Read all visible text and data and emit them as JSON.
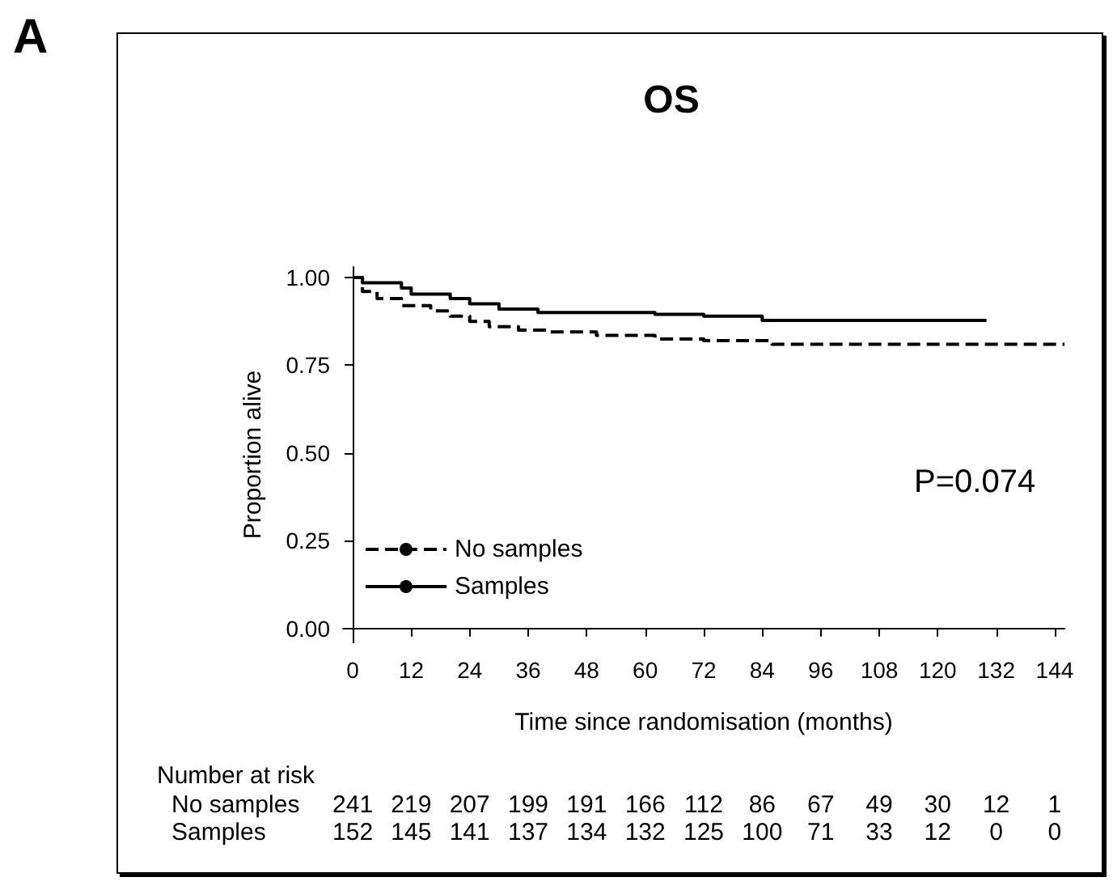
{
  "chart_data": {
    "type": "step",
    "title": "OS",
    "xlabel": "Time since randomisation (months)",
    "ylabel": "Proportion alive",
    "annotations": [
      "A",
      "P=0.074",
      "Number at risk",
      "No samples",
      "241 219 207 199 191 166 112 86 67 49 30 12 1",
      "Samples",
      "152 145 141 137 134 132 125 100 71 33 12 0 0"
    ],
    "series": [
      {
        "name": "No samples",
        "color": "#000000",
        "line_style": "dashed",
        "x": [
          0,
          2,
          5,
          10,
          16,
          20,
          24,
          28,
          34,
          40,
          50,
          62,
          72,
          86,
          146
        ],
        "values": [
          1,
          0.96,
          0.94,
          0.92,
          0.905,
          0.89,
          0.875,
          0.86,
          0.85,
          0.845,
          0.835,
          0.825,
          0.82,
          0.81,
          0.81
        ]
      },
      {
        "name": "Samples",
        "color": "#000000",
        "line_style": "solid",
        "x": [
          0,
          2,
          10,
          12,
          20,
          24,
          30,
          38,
          62,
          72,
          84,
          130
        ],
        "values": [
          1,
          0.985,
          0.97,
          0.953,
          0.94,
          0.925,
          0.91,
          0.9,
          0.895,
          0.89,
          0.878,
          0.878
        ]
      }
    ],
    "xlim": [
      -2,
      146
    ],
    "xticks": [
      0,
      12,
      24,
      36,
      48,
      60,
      72,
      84,
      96,
      108,
      120,
      132,
      144
    ],
    "ylim": [
      -0.04,
      1.03
    ],
    "yticks": [
      {
        "value": 0,
        "label": "0.00"
      },
      {
        "value": 0.25,
        "label": "0.25"
      },
      {
        "value": 0.5,
        "label": "0.50"
      },
      {
        "value": 0.75,
        "label": "0.75"
      },
      {
        "value": 1,
        "label": "1.00"
      }
    ],
    "grid": false,
    "legend": "bottom left",
    "marker": "none"
  }
}
